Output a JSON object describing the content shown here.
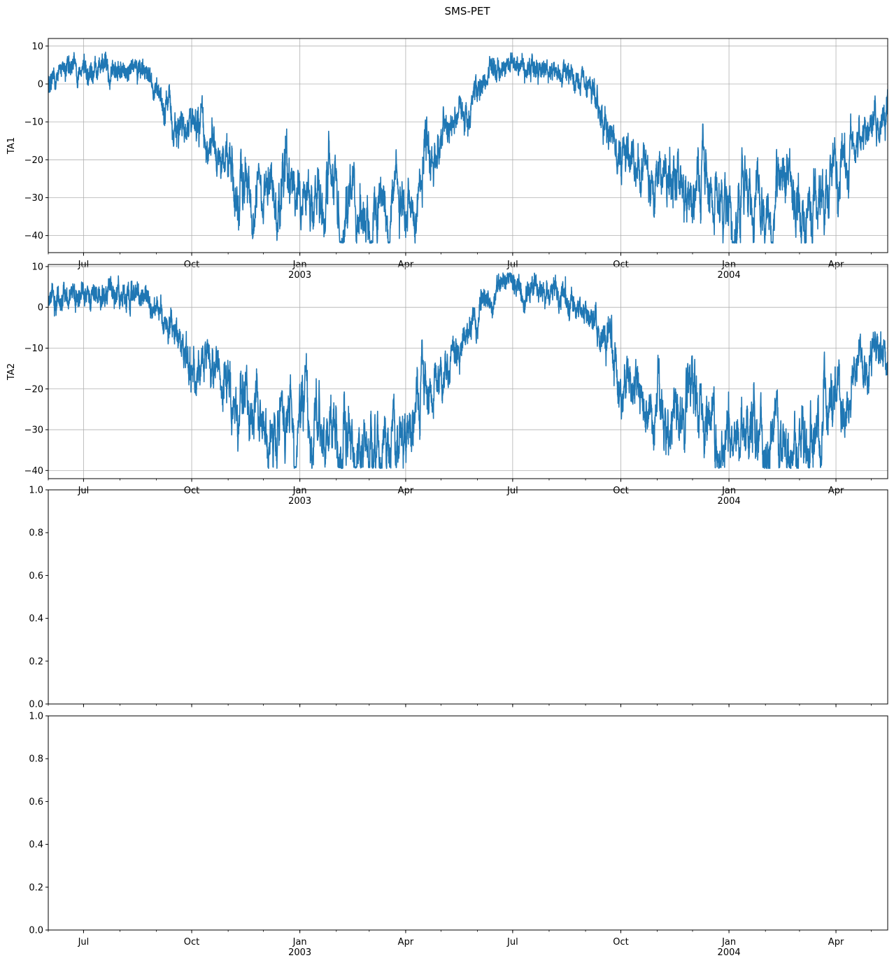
{
  "figure": {
    "suptitle": "SMS-PET",
    "line_color": "#1f77b4",
    "grid_color": "#b0b0b0"
  },
  "chart_data": [
    {
      "type": "line",
      "ylabel": "TA1",
      "x_range": [
        "2002-06-01",
        "2004-05-15"
      ],
      "ylim": [
        -44.5,
        12.0
      ],
      "yticks": [
        10,
        0,
        -10,
        -20,
        -30,
        -40
      ],
      "grid": true,
      "x_major_ticks": [
        {
          "date": "2002-07-01",
          "label": "Jul"
        },
        {
          "date": "2002-10-01",
          "label": "Oct"
        },
        {
          "date": "2003-01-01",
          "label": "Jan\n2003"
        },
        {
          "date": "2003-04-01",
          "label": "Apr"
        },
        {
          "date": "2003-07-01",
          "label": "Jul"
        },
        {
          "date": "2003-10-01",
          "label": "Oct"
        },
        {
          "date": "2004-01-01",
          "label": "Jan\n2004"
        },
        {
          "date": "2004-04-01",
          "label": "Apr"
        }
      ],
      "series": [
        {
          "values_approx": [
            [
              "2002-06-01",
              2
            ],
            [
              "2002-06-15",
              4
            ],
            [
              "2002-07-01",
              3
            ],
            [
              "2002-07-15",
              4
            ],
            [
              "2002-08-01",
              4
            ],
            [
              "2002-08-15",
              3
            ],
            [
              "2002-09-01",
              0
            ],
            [
              "2002-09-15",
              -8
            ],
            [
              "2002-10-01",
              -15
            ],
            [
              "2002-10-15",
              -14
            ],
            [
              "2002-11-01",
              -22
            ],
            [
              "2002-11-15",
              -28
            ],
            [
              "2002-12-01",
              -27
            ],
            [
              "2002-12-15",
              -29
            ],
            [
              "2003-01-01",
              -27
            ],
            [
              "2003-01-15",
              -31
            ],
            [
              "2003-02-01",
              -33
            ],
            [
              "2003-02-15",
              -34
            ],
            [
              "2003-03-01",
              -37
            ],
            [
              "2003-03-15",
              -34
            ],
            [
              "2003-04-01",
              -29
            ],
            [
              "2003-04-15",
              -24
            ],
            [
              "2003-05-01",
              -15
            ],
            [
              "2003-05-15",
              -10
            ],
            [
              "2003-06-01",
              -2
            ],
            [
              "2003-06-15",
              3
            ],
            [
              "2003-07-01",
              6
            ],
            [
              "2003-07-15",
              5
            ],
            [
              "2003-08-01",
              4
            ],
            [
              "2003-08-15",
              2
            ],
            [
              "2003-09-01",
              -2
            ],
            [
              "2003-09-15",
              -8
            ],
            [
              "2003-10-01",
              -17
            ],
            [
              "2003-10-15",
              -19
            ],
            [
              "2003-11-01",
              -24
            ],
            [
              "2003-11-15",
              -27
            ],
            [
              "2003-12-01",
              -28
            ],
            [
              "2003-12-15",
              -27
            ],
            [
              "2004-01-01",
              -31
            ],
            [
              "2004-01-15",
              -32
            ],
            [
              "2004-02-01",
              -31
            ],
            [
              "2004-02-15",
              -33
            ],
            [
              "2004-03-01",
              -33
            ],
            [
              "2004-03-15",
              -32
            ],
            [
              "2004-04-01",
              -27
            ],
            [
              "2004-04-15",
              -17
            ],
            [
              "2004-05-01",
              -13
            ],
            [
              "2004-05-15",
              -10
            ]
          ]
        }
      ]
    },
    {
      "type": "line",
      "ylabel": "TA2",
      "x_range": [
        "2002-06-01",
        "2004-05-15"
      ],
      "ylim": [
        -42.0,
        10.5
      ],
      "yticks": [
        10,
        0,
        -10,
        -20,
        -30,
        -40
      ],
      "grid": true,
      "x_major_ticks": [
        {
          "date": "2002-07-01",
          "label": "Jul"
        },
        {
          "date": "2002-10-01",
          "label": "Oct"
        },
        {
          "date": "2003-01-01",
          "label": "Jan\n2003"
        },
        {
          "date": "2003-04-01",
          "label": "Apr"
        },
        {
          "date": "2003-07-01",
          "label": "Jul"
        },
        {
          "date": "2003-10-01",
          "label": "Oct"
        },
        {
          "date": "2004-01-01",
          "label": "Jan\n2004"
        },
        {
          "date": "2004-04-01",
          "label": "Apr"
        }
      ],
      "series": [
        {
          "values_approx": [
            [
              "2002-06-01",
              1
            ],
            [
              "2002-06-15",
              3
            ],
            [
              "2002-07-01",
              3
            ],
            [
              "2002-07-15",
              3
            ],
            [
              "2002-08-01",
              3
            ],
            [
              "2002-08-15",
              3
            ],
            [
              "2002-09-01",
              0
            ],
            [
              "2002-09-15",
              -8
            ],
            [
              "2002-10-01",
              -15
            ],
            [
              "2002-10-15",
              -13
            ],
            [
              "2002-11-01",
              -22
            ],
            [
              "2002-11-15",
              -28
            ],
            [
              "2002-12-01",
              -27
            ],
            [
              "2002-12-15",
              -29
            ],
            [
              "2003-01-01",
              -26
            ],
            [
              "2003-01-15",
              -30
            ],
            [
              "2003-02-01",
              -32
            ],
            [
              "2003-02-15",
              -34
            ],
            [
              "2003-03-01",
              -36
            ],
            [
              "2003-03-15",
              -33
            ],
            [
              "2003-04-01",
              -29
            ],
            [
              "2003-04-15",
              -23
            ],
            [
              "2003-05-01",
              -15
            ],
            [
              "2003-05-15",
              -9
            ],
            [
              "2003-06-01",
              -2
            ],
            [
              "2003-06-15",
              3
            ],
            [
              "2003-07-01",
              5
            ],
            [
              "2003-07-15",
              5
            ],
            [
              "2003-08-01",
              3
            ],
            [
              "2003-08-15",
              2
            ],
            [
              "2003-09-01",
              -2
            ],
            [
              "2003-09-15",
              -8
            ],
            [
              "2003-10-01",
              -17
            ],
            [
              "2003-10-15",
              -19
            ],
            [
              "2003-11-01",
              -24
            ],
            [
              "2003-11-15",
              -27
            ],
            [
              "2003-12-01",
              -28
            ],
            [
              "2003-12-15",
              -26
            ],
            [
              "2004-01-01",
              -31
            ],
            [
              "2004-01-15",
              -32
            ],
            [
              "2004-02-01",
              -31
            ],
            [
              "2004-02-15",
              -33
            ],
            [
              "2004-03-01",
              -33
            ],
            [
              "2004-03-15",
              -32
            ],
            [
              "2004-04-01",
              -27
            ],
            [
              "2004-04-15",
              -17
            ],
            [
              "2004-05-01",
              -13
            ],
            [
              "2004-05-15",
              -10
            ]
          ]
        }
      ]
    },
    {
      "type": "line",
      "ylabel": "",
      "x_range": [
        "2002-06-01",
        "2004-05-15"
      ],
      "ylim": [
        0.0,
        1.0
      ],
      "yticks": [
        0.0,
        0.2,
        0.4,
        0.6,
        0.8,
        1.0
      ],
      "grid": false,
      "series": []
    },
    {
      "type": "line",
      "ylabel": "",
      "x_range": [
        "2002-06-01",
        "2004-05-15"
      ],
      "ylim": [
        0.0,
        1.0
      ],
      "yticks": [
        0.0,
        0.2,
        0.4,
        0.6,
        0.8,
        1.0
      ],
      "grid": false,
      "series": [],
      "x_major_ticks": [
        {
          "date": "2002-07-01",
          "label": "Jul"
        },
        {
          "date": "2002-10-01",
          "label": "Oct"
        },
        {
          "date": "2003-01-01",
          "label": "Jan\n2003"
        },
        {
          "date": "2003-04-01",
          "label": "Apr"
        },
        {
          "date": "2003-07-01",
          "label": "Jul"
        },
        {
          "date": "2003-10-01",
          "label": "Oct"
        },
        {
          "date": "2004-01-01",
          "label": "Jan\n2004"
        },
        {
          "date": "2004-04-01",
          "label": "Apr"
        }
      ]
    }
  ]
}
